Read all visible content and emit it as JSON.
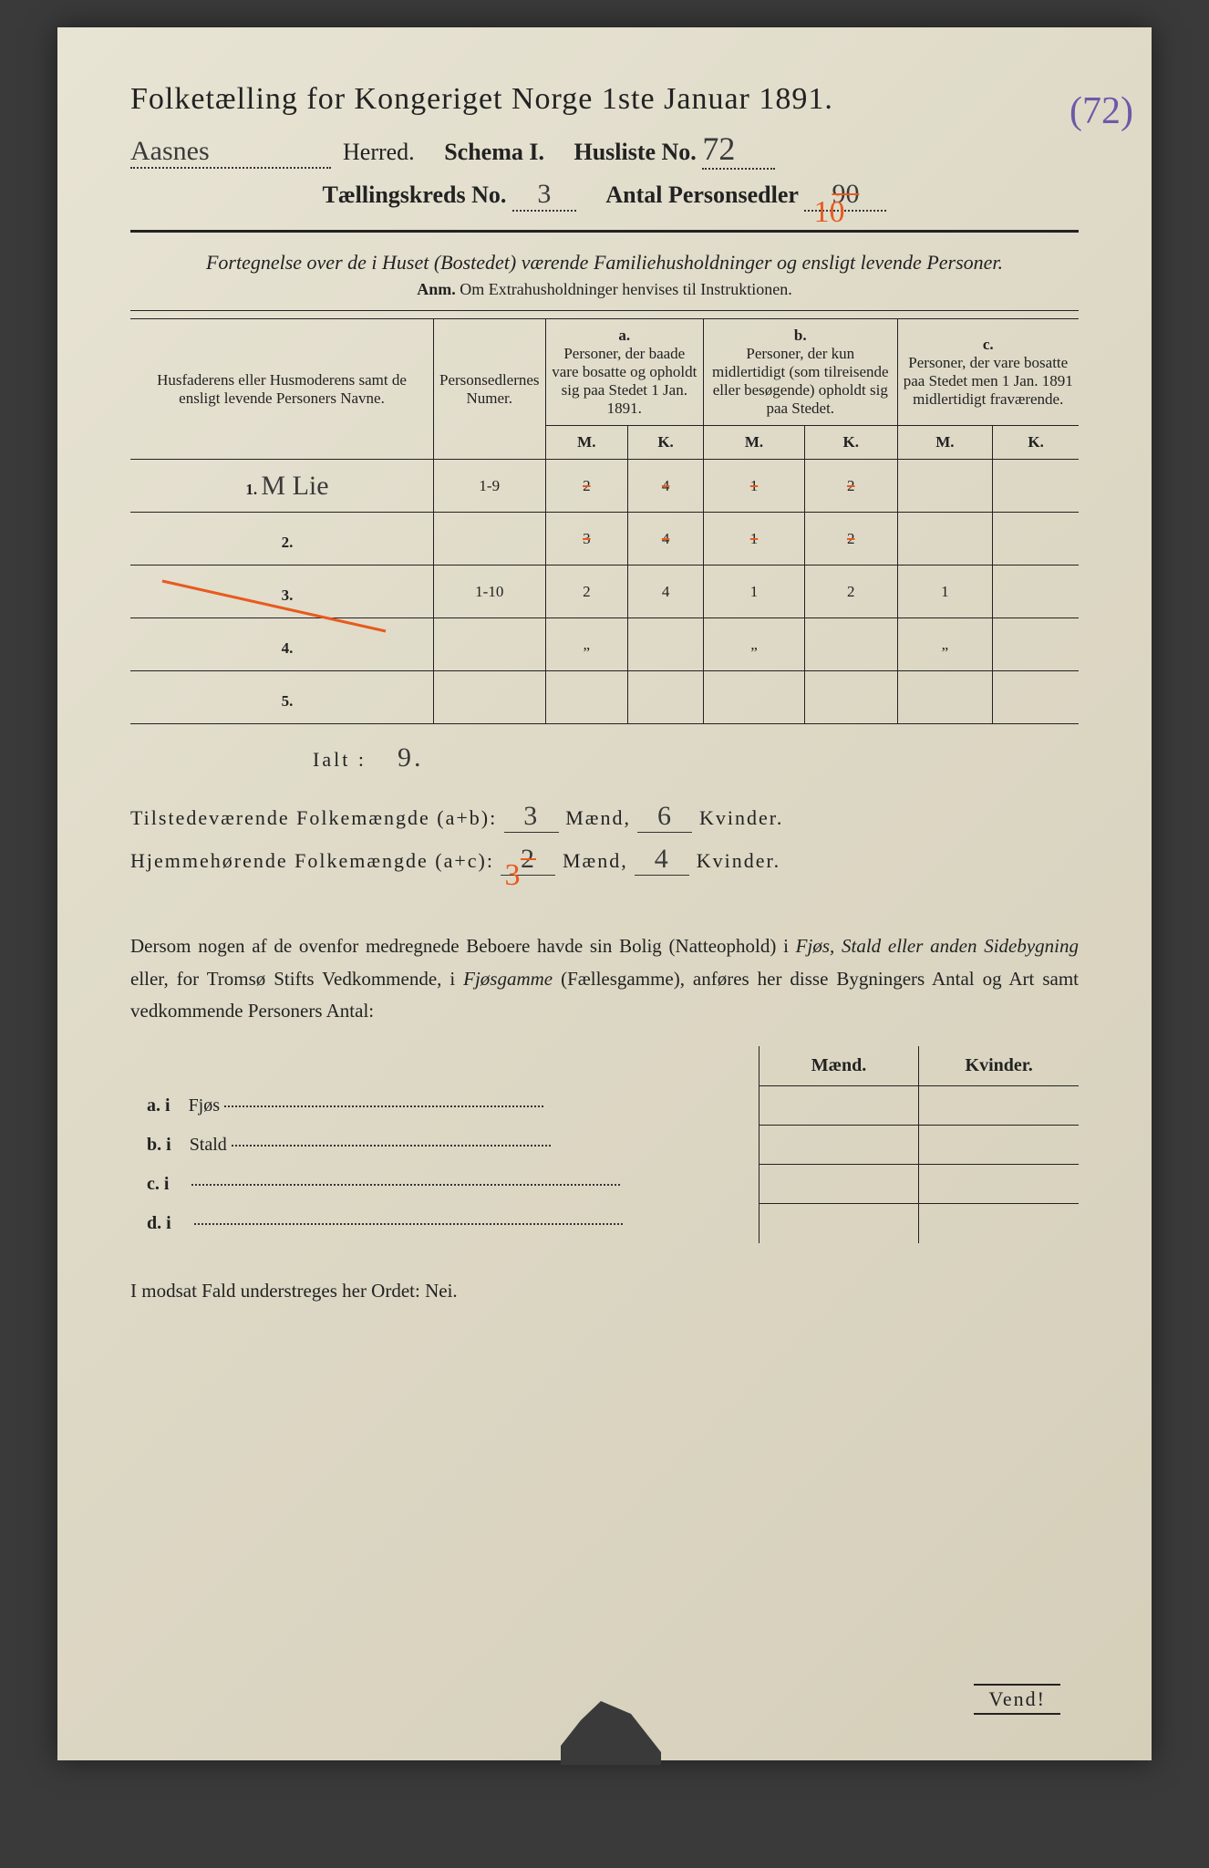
{
  "title": "Folketælling for Kongeriget Norge 1ste Januar 1891.",
  "herred_value": "Aasnes",
  "herred_label": "Herred.",
  "schema_label": "Schema I.",
  "husliste_label": "Husliste No.",
  "husliste_value": "72",
  "margin_note": "(72)",
  "kreds_label": "Tællingskreds No.",
  "kreds_value": "3",
  "antal_label": "Antal Personsedler",
  "antal_value": "90",
  "antal_value2": "10",
  "subtitle": "Fortegnelse over de i Huset (Bostedet) værende Familiehusholdninger og ensligt levende Personer.",
  "anm": "Anm. Om Extrahusholdninger henvises til Instruktionen.",
  "col_names": "Husfaderens eller Husmoderens samt de ensligt levende Personers Navne.",
  "col_numer": "Personsedlernes Numer.",
  "col_a": "a.\nPersoner, der baade vare bosatte og opholdt sig paa Stedet 1 Jan. 1891.",
  "col_b": "b.\nPersoner, der kun midlertidigt (som tilreisende eller besøgende) opholdt sig paa Stedet.",
  "col_c": "c.\nPersoner, der vare bosatte paa Stedet men 1 Jan. 1891 midlertidigt fraværende.",
  "mk_m": "M.",
  "mk_k": "K.",
  "rows": [
    {
      "n": "1.",
      "name": "M Lie",
      "num": "1-9",
      "aM": "2",
      "aK": "4",
      "bM": "1",
      "bK": "2",
      "cM": "",
      "cK": ""
    },
    {
      "n": "2.",
      "name": "",
      "num": "",
      "aM": "3",
      "aK": "4",
      "bM": "1",
      "bK": "2",
      "cM": "",
      "cK": ""
    },
    {
      "n": "3.",
      "name": "",
      "num": "1-10",
      "aM": "2",
      "aK": "4",
      "bM": "1",
      "bK": "2",
      "cM": "1",
      "cK": ""
    },
    {
      "n": "4.",
      "name": "",
      "num": "",
      "aM": "„",
      "aK": "",
      "bM": "„",
      "bK": "",
      "cM": "„",
      "cK": ""
    },
    {
      "n": "5.",
      "name": "",
      "num": "",
      "aM": "",
      "aK": "",
      "bM": "",
      "bK": "",
      "cM": "",
      "cK": ""
    }
  ],
  "ialt_label": "Ialt :",
  "ialt_value": "9.",
  "summary1_label": "Tilstedeværende Folkemængde (a+b):",
  "summary1_m": "3",
  "summary1_k": "6",
  "summary2_label": "Hjemmehørende Folkemængde (a+c):",
  "summary2_m": "2",
  "summary2_m_orange": "3",
  "summary2_k": "4",
  "maend": "Mænd,",
  "kvinder": "Kvinder.",
  "paragraph": "Dersom nogen af de ovenfor medregnede Beboere havde sin Bolig (Natteophold) i Fjøs, Stald eller anden Sidebygning eller, for Tromsø Stifts Vedkommende, i Fjøsgamme (Fællesgamme), anføres her disse Bygningers Antal og Art samt vedkommende Personers Antal:",
  "lower_head_m": "Mænd.",
  "lower_head_k": "Kvinder.",
  "lower_rows": [
    {
      "label": "a.  i",
      "text": "Fjøs"
    },
    {
      "label": "b.  i",
      "text": "Stald"
    },
    {
      "label": "c.  i",
      "text": ""
    },
    {
      "label": "d.  i",
      "text": ""
    }
  ],
  "nei_line": "I modsat Fald understreges her Ordet: Nei.",
  "vend": "Vend!",
  "colors": {
    "paper": "#e0dbc8",
    "ink": "#222222",
    "orange": "#e85a1f",
    "purple": "#6b5aa8"
  }
}
